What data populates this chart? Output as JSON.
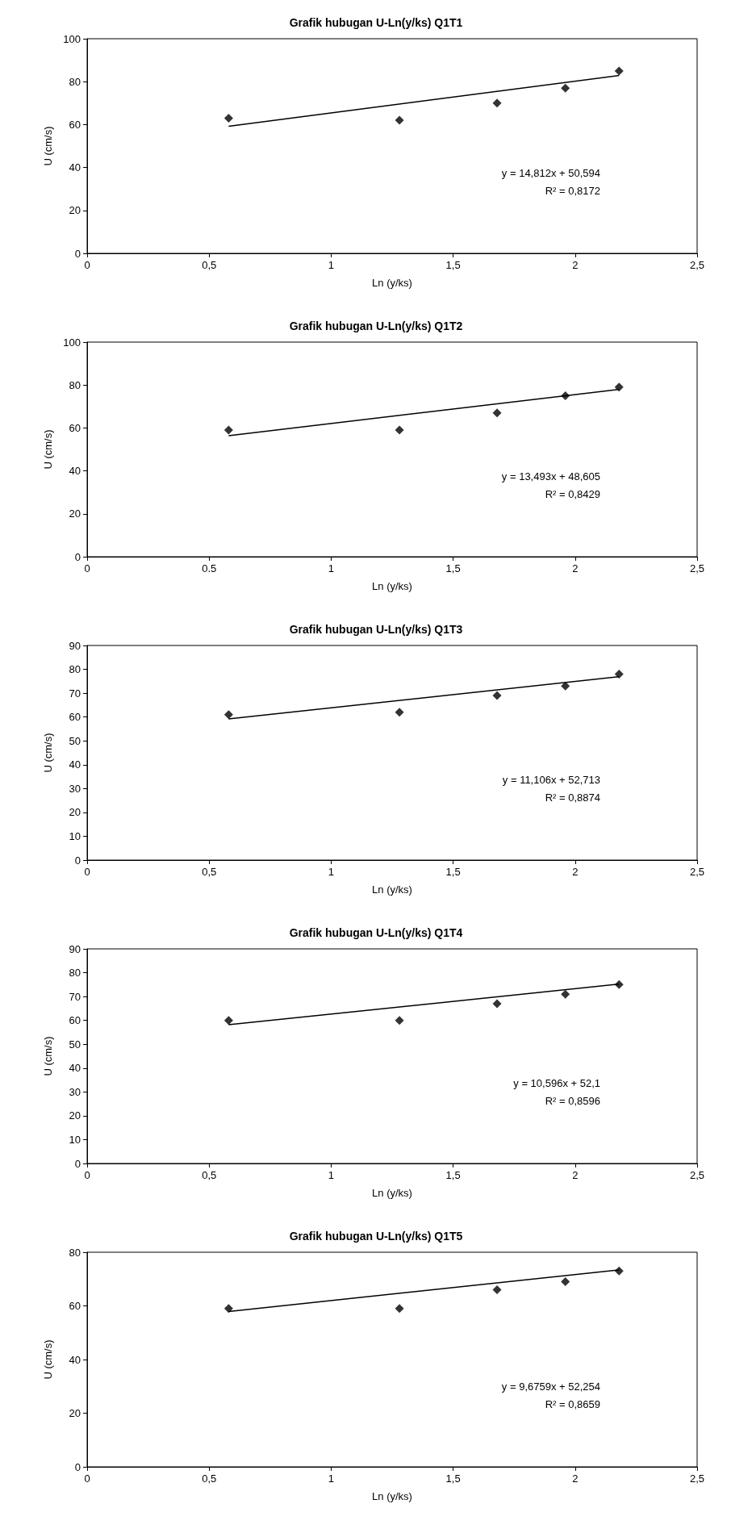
{
  "chart_data": [
    {
      "type": "scatter",
      "title": "Grafik hubugan U-Ln(y/ks) Q1T1",
      "xlabel": "Ln (y/ks)",
      "ylabel": "U (cm/s)",
      "xlim": [
        0,
        2.5
      ],
      "xticks": [
        0,
        {
          "value": 0.5,
          "label": "0,5"
        },
        1,
        {
          "value": 1.5,
          "label": "1,5"
        },
        2,
        {
          "value": 2.5,
          "label": "2,5"
        }
      ],
      "ylim": [
        0,
        100
      ],
      "yticks": [
        0,
        20,
        40,
        60,
        80,
        100
      ],
      "grid": false,
      "marker": "diamond",
      "annotations": [
        "y = 14,812x + 50,594",
        "R² = 0,8172"
      ],
      "series": [
        {
          "color": "#000000",
          "x": [
            0.58,
            1.28,
            1.68,
            1.96,
            2.18
          ],
          "values": [
            63,
            62,
            70,
            77,
            85
          ]
        },
        {
          "type": "line",
          "color": "#000000",
          "marker": "none",
          "line_style": "solid",
          "x": [
            0.58,
            2.18
          ],
          "values": [
            59.2,
            82.9
          ]
        }
      ]
    },
    {
      "type": "scatter",
      "title": "Grafik hubugan U-Ln(y/ks) Q1T2",
      "xlabel": "Ln (y/ks)",
      "ylabel": "U (cm/s)",
      "xlim": [
        0,
        2.5
      ],
      "xticks": [
        0,
        {
          "value": 0.5,
          "label": "0.5"
        },
        1,
        {
          "value": 1.5,
          "label": "1,5"
        },
        2,
        {
          "value": 2.5,
          "label": "2,5"
        }
      ],
      "ylim": [
        0,
        100
      ],
      "yticks": [
        0,
        20,
        40,
        60,
        80,
        100
      ],
      "grid": false,
      "marker": "diamond",
      "annotations": [
        "y = 13,493x + 48,605",
        "R² = 0,8429"
      ],
      "series": [
        {
          "color": "#000000",
          "x": [
            0.58,
            1.28,
            1.68,
            1.96,
            2.18
          ],
          "values": [
            59,
            59,
            67,
            75,
            79
          ]
        },
        {
          "type": "line",
          "color": "#000000",
          "marker": "none",
          "line_style": "solid",
          "x": [
            0.58,
            2.18
          ],
          "values": [
            56.4,
            78.0
          ]
        }
      ]
    },
    {
      "type": "scatter",
      "title": "Grafik hubugan U-Ln(y/ks) Q1T3",
      "xlabel": "Ln (y/ks)",
      "ylabel": "U (cm/s)",
      "xlim": [
        0,
        2.5
      ],
      "xticks": [
        0,
        {
          "value": 0.5,
          "label": "0,5"
        },
        1,
        {
          "value": 1.5,
          "label": "1,5"
        },
        2,
        {
          "value": 2.5,
          "label": "2,5"
        }
      ],
      "ylim": [
        0,
        90
      ],
      "yticks": [
        0,
        10,
        20,
        30,
        40,
        50,
        60,
        70,
        80,
        90
      ],
      "grid": false,
      "marker": "diamond",
      "annotations": [
        "y = 11,106x + 52,713",
        "R² = 0,8874"
      ],
      "series": [
        {
          "color": "#000000",
          "x": [
            0.58,
            1.28,
            1.68,
            1.96,
            2.18
          ],
          "values": [
            61,
            62,
            69,
            73,
            78
          ]
        },
        {
          "type": "line",
          "color": "#000000",
          "marker": "none",
          "line_style": "solid",
          "x": [
            0.58,
            2.18
          ],
          "values": [
            59.2,
            76.9
          ]
        }
      ]
    },
    {
      "type": "scatter",
      "title": "Grafik hubugan U-Ln(y/ks) Q1T4",
      "xlabel": "Ln (y/ks)",
      "ylabel": "U (cm/s)",
      "xlim": [
        0,
        2.5
      ],
      "xticks": [
        0,
        {
          "value": 0.5,
          "label": "0,5"
        },
        1,
        {
          "value": 1.5,
          "label": "1,5"
        },
        2,
        {
          "value": 2.5,
          "label": "2,5"
        }
      ],
      "ylim": [
        0,
        90
      ],
      "yticks": [
        0,
        10,
        20,
        30,
        40,
        50,
        60,
        70,
        80,
        90
      ],
      "grid": false,
      "marker": "diamond",
      "annotations": [
        "y = 10,596x + 52,1",
        "R² = 0,8596"
      ],
      "series": [
        {
          "color": "#000000",
          "x": [
            0.58,
            1.28,
            1.68,
            1.96,
            2.18
          ],
          "values": [
            60,
            60,
            67,
            71,
            75
          ]
        },
        {
          "type": "line",
          "color": "#000000",
          "marker": "none",
          "line_style": "solid",
          "x": [
            0.58,
            2.18
          ],
          "values": [
            58.2,
            75.2
          ]
        }
      ]
    },
    {
      "type": "scatter",
      "title": "Grafik hubugan U-Ln(y/ks) Q1T5",
      "xlabel": "Ln (y/ks)",
      "ylabel": "U (cm/s)",
      "xlim": [
        0,
        2.5
      ],
      "xticks": [
        0,
        {
          "value": 0.5,
          "label": "0,5"
        },
        1,
        {
          "value": 1.5,
          "label": "1,5"
        },
        2,
        {
          "value": 2.5,
          "label": "2,5"
        }
      ],
      "ylim": [
        0,
        80
      ],
      "yticks": [
        0,
        20,
        40,
        60,
        80
      ],
      "grid": false,
      "marker": "diamond",
      "annotations": [
        "y = 9,6759x + 52,254",
        "R² = 0,8659"
      ],
      "series": [
        {
          "color": "#000000",
          "x": [
            0.58,
            1.28,
            1.68,
            1.96,
            2.18
          ],
          "values": [
            59,
            59,
            66,
            69,
            73
          ]
        },
        {
          "type": "line",
          "color": "#000000",
          "marker": "none",
          "line_style": "solid",
          "x": [
            0.58,
            2.18
          ],
          "values": [
            57.9,
            73.4
          ]
        }
      ]
    }
  ]
}
